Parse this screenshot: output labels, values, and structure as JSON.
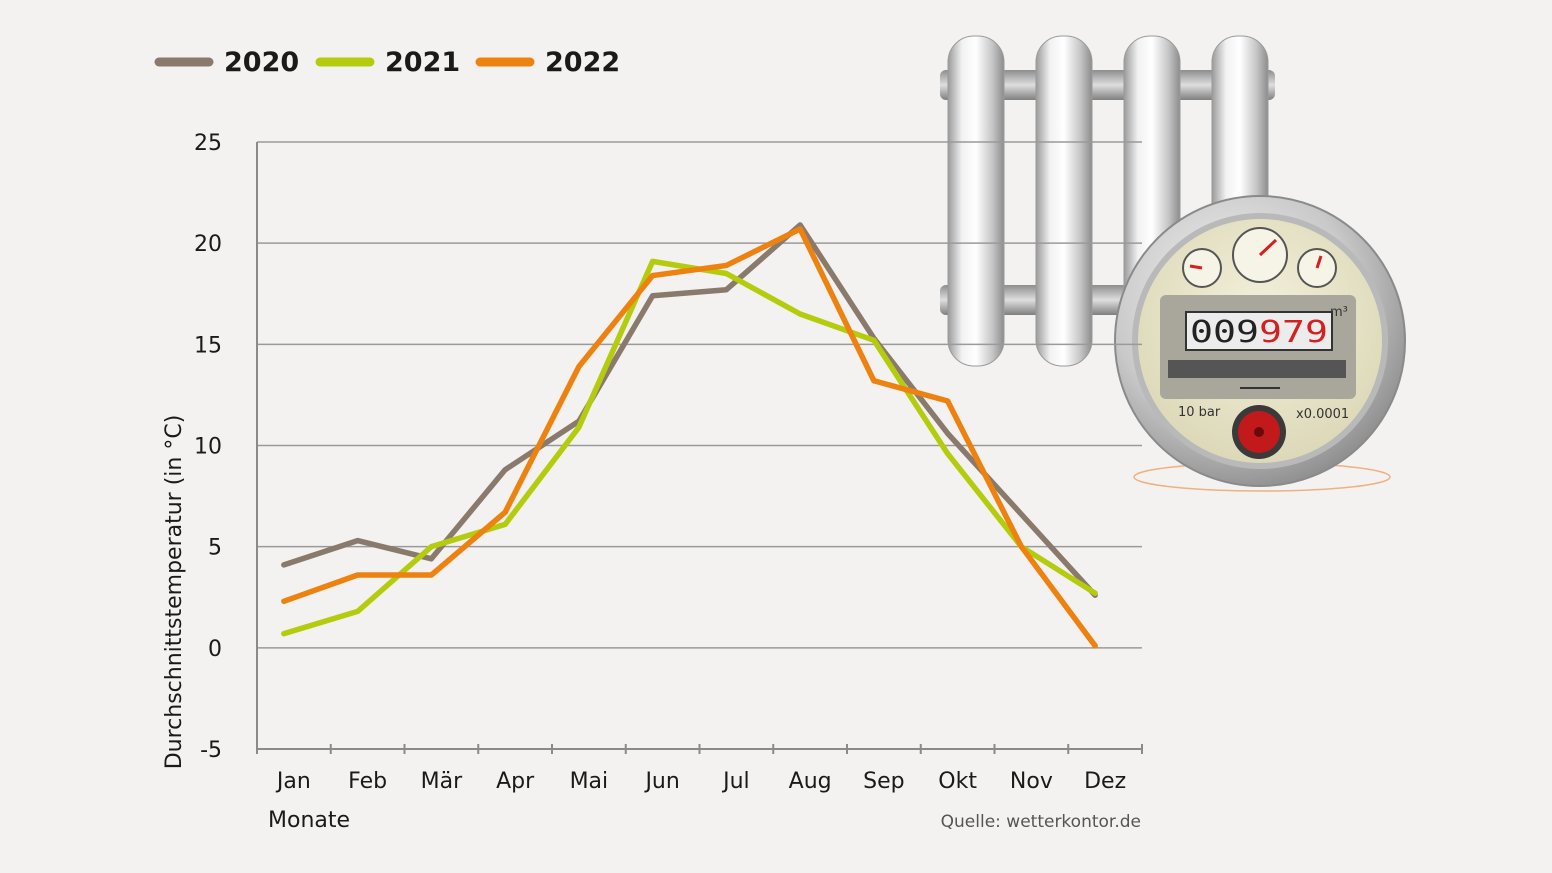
{
  "chart_data": {
    "type": "line",
    "categories": [
      "Jan",
      "Feb",
      "Mär",
      "Apr",
      "Mai",
      "Jun",
      "Jul",
      "Aug",
      "Sep",
      "Okt",
      "Nov",
      "Dez"
    ],
    "series": [
      {
        "name": "2020",
        "color": "#8a7a6c",
        "values": [
          4.1,
          5.3,
          4.4,
          8.8,
          11.2,
          17.4,
          17.7,
          20.9,
          15.3,
          10.6,
          6.6,
          2.6
        ]
      },
      {
        "name": "2021",
        "color": "#b5cc0e",
        "values": [
          0.7,
          1.8,
          5.0,
          6.1,
          10.9,
          19.1,
          18.5,
          16.5,
          15.2,
          9.6,
          5.0,
          2.7
        ]
      },
      {
        "name": "2022",
        "color": "#ee8210",
        "values": [
          2.3,
          3.6,
          3.6,
          6.7,
          13.9,
          18.4,
          18.9,
          20.7,
          13.2,
          12.2,
          5.0,
          0.1
        ]
      }
    ],
    "ylim": [
      -5,
      25
    ],
    "yticks": [
      "25",
      "20",
      "15",
      "10",
      "5",
      "0",
      "-5"
    ],
    "ylabel": "Durchschnittstemperatur (in °C)",
    "xlabel": "Monate",
    "source": "Quelle: wetterkontor.de",
    "grid": true,
    "legend_position": "top-left"
  },
  "illustration": {
    "meter_reading": "009979",
    "meter_unit": "m³",
    "pressure_label": "10 bar",
    "multiplier_label": "x0.0001"
  }
}
